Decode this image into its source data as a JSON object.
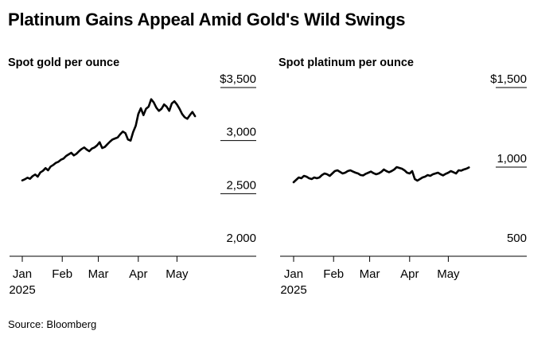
{
  "headline": "Platinum Gains Appeal Amid Gold's Wild Swings",
  "source": "Source: Bloomberg",
  "chart_data": [
    {
      "type": "line",
      "title": "Spot gold per ounce",
      "xlabel": "",
      "ylabel": "",
      "ylim": [
        2000,
        3500
      ],
      "y_ticks": [
        {
          "value": 3500,
          "label": "$3,500"
        },
        {
          "value": 3000,
          "label": "3,000"
        },
        {
          "value": 2500,
          "label": "2,500"
        },
        {
          "value": 2000,
          "label": "2,000"
        }
      ],
      "x_ticks": [
        {
          "day": 0,
          "label": "Jan",
          "sub": "2025"
        },
        {
          "day": 31,
          "label": "Feb",
          "sub": ""
        },
        {
          "day": 59,
          "label": "Mar",
          "sub": ""
        },
        {
          "day": 90,
          "label": "Apr",
          "sub": ""
        },
        {
          "day": 120,
          "label": "May",
          "sub": ""
        }
      ],
      "series": [
        {
          "name": "Spot gold",
          "x": [
            0,
            2,
            4,
            6,
            8,
            10,
            12,
            14,
            16,
            18,
            20,
            22,
            24,
            26,
            28,
            30,
            32,
            34,
            36,
            38,
            40,
            42,
            44,
            46,
            48,
            50,
            52,
            54,
            56,
            58,
            60,
            62,
            64,
            66,
            68,
            70,
            72,
            74,
            76,
            78,
            80,
            82,
            84,
            86,
            88,
            90,
            92,
            94,
            96,
            98,
            100,
            102,
            104,
            106,
            108,
            110,
            112,
            114,
            116,
            118,
            120,
            122,
            124,
            126,
            128,
            130,
            132,
            134
          ],
          "values": [
            2625,
            2635,
            2650,
            2640,
            2665,
            2680,
            2660,
            2700,
            2715,
            2740,
            2720,
            2755,
            2770,
            2790,
            2800,
            2820,
            2830,
            2855,
            2870,
            2885,
            2860,
            2875,
            2900,
            2920,
            2935,
            2915,
            2900,
            2925,
            2935,
            2955,
            2985,
            2930,
            2940,
            2965,
            2990,
            3010,
            3020,
            3030,
            3060,
            3085,
            3070,
            3010,
            3000,
            3080,
            3140,
            3250,
            3305,
            3240,
            3300,
            3320,
            3390,
            3360,
            3310,
            3280,
            3300,
            3340,
            3320,
            3280,
            3350,
            3370,
            3340,
            3300,
            3250,
            3220,
            3205,
            3240,
            3270,
            3230
          ]
        }
      ]
    },
    {
      "type": "line",
      "title": "Spot platinum per ounce",
      "xlabel": "",
      "ylabel": "",
      "ylim": [
        500,
        1500
      ],
      "y_ticks": [
        {
          "value": 1500,
          "label": "$1,500"
        },
        {
          "value": 1000,
          "label": "1,000"
        },
        {
          "value": 500,
          "label": "500"
        }
      ],
      "x_ticks": [
        {
          "day": 0,
          "label": "Jan",
          "sub": "2025"
        },
        {
          "day": 31,
          "label": "Feb",
          "sub": ""
        },
        {
          "day": 59,
          "label": "Mar",
          "sub": ""
        },
        {
          "day": 90,
          "label": "Apr",
          "sub": ""
        },
        {
          "day": 120,
          "label": "May",
          "sub": ""
        }
      ],
      "series": [
        {
          "name": "Spot platinum",
          "x": [
            0,
            2,
            4,
            6,
            8,
            10,
            12,
            14,
            16,
            18,
            20,
            22,
            24,
            26,
            28,
            30,
            32,
            34,
            36,
            38,
            40,
            42,
            44,
            46,
            48,
            50,
            52,
            54,
            56,
            58,
            60,
            62,
            64,
            66,
            68,
            70,
            72,
            74,
            76,
            78,
            80,
            82,
            84,
            86,
            88,
            90,
            92,
            94,
            96,
            98,
            100,
            102,
            104,
            106,
            108,
            110,
            112,
            114,
            116,
            118,
            120,
            122,
            124,
            126,
            128,
            130,
            132,
            134,
            136
          ],
          "values": [
            905,
            920,
            935,
            930,
            945,
            940,
            930,
            925,
            935,
            930,
            935,
            950,
            960,
            955,
            945,
            960,
            975,
            980,
            970,
            960,
            965,
            975,
            980,
            972,
            965,
            960,
            950,
            948,
            958,
            965,
            972,
            962,
            955,
            960,
            970,
            985,
            975,
            968,
            975,
            985,
            1000,
            995,
            990,
            980,
            965,
            960,
            975,
            925,
            915,
            925,
            935,
            940,
            950,
            945,
            955,
            960,
            965,
            955,
            948,
            958,
            965,
            975,
            968,
            960,
            980,
            978,
            985,
            990,
            998
          ]
        }
      ]
    }
  ]
}
